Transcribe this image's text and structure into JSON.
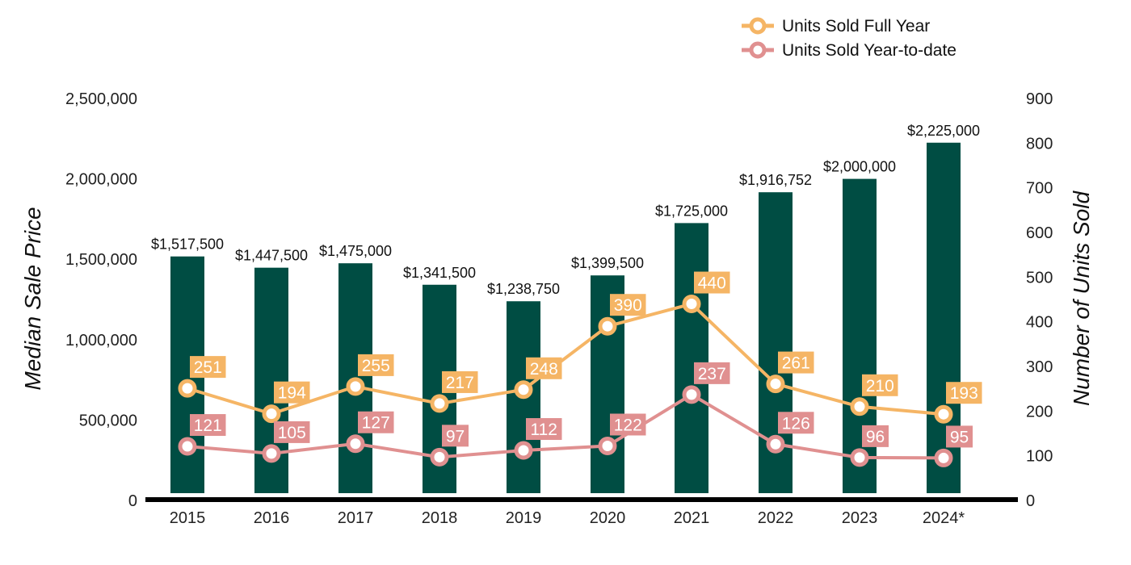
{
  "chart_data": {
    "type": "bar",
    "categories": [
      "2015",
      "2016",
      "2017",
      "2018",
      "2019",
      "2020",
      "2021",
      "2022",
      "2023",
      "2024*"
    ],
    "series": [
      {
        "name": "Median Sale Price",
        "type": "bar",
        "axis": "left",
        "values": [
          1517500,
          1447500,
          1475000,
          1341500,
          1238750,
          1399500,
          1725000,
          1916752,
          2000000,
          2225000
        ],
        "labels": [
          "$1,517,500",
          "$1,447,500",
          "$1,475,000",
          "$1,341,500",
          "$1,238,750",
          "$1,399,500",
          "$1,725,000",
          "$1,916,752",
          "$2,000,000",
          "$2,225,000"
        ],
        "color": "#004d43"
      },
      {
        "name": "Units Sold Full Year",
        "type": "line",
        "axis": "right",
        "values": [
          251,
          194,
          255,
          217,
          248,
          390,
          440,
          261,
          210,
          193
        ],
        "color": "#f5b565"
      },
      {
        "name": "Units Sold Year-to-date",
        "type": "line",
        "axis": "right",
        "values": [
          121,
          105,
          127,
          97,
          112,
          122,
          237,
          126,
          96,
          95
        ],
        "color": "#e09090"
      }
    ],
    "ylabel": "Median Sale Price",
    "y2label": "Number of Units Sold",
    "ylim": [
      0,
      2500000
    ],
    "y2lim": [
      0,
      900
    ],
    "yticks": [
      "0",
      "500,000",
      "1,000,000",
      "1,500,000",
      "2,000,000",
      "2,500,000"
    ],
    "y2ticks": [
      "0",
      "100",
      "200",
      "300",
      "400",
      "500",
      "600",
      "700",
      "800",
      "900"
    ],
    "legend_position": "top-right",
    "grid": false
  }
}
